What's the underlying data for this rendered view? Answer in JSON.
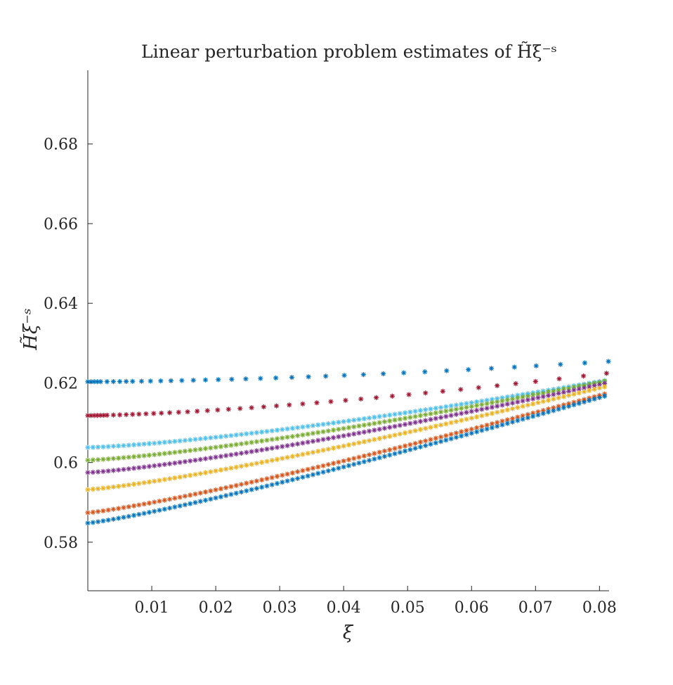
{
  "chart_data": {
    "type": "scatter",
    "title": "Linear perturbation problem estimates of H̃ξ⁻ˢ",
    "xlabel": "ξ",
    "ylabel": "H̃ξ⁻ˢ",
    "xlim": [
      0,
      0.0815
    ],
    "ylim": [
      0.5678,
      0.6985
    ],
    "xticks": [
      0.01,
      0.02,
      0.03,
      0.04,
      0.05,
      0.06,
      0.07,
      0.08
    ],
    "xtick_labels": [
      "0.01",
      "0.02",
      "0.03",
      "0.04",
      "0.05",
      "0.06",
      "0.07",
      "0.08"
    ],
    "yticks": [
      0.58,
      0.6,
      0.62,
      0.64,
      0.66,
      0.68
    ],
    "ytick_labels": [
      "0.58",
      "0.6",
      "0.62",
      "0.64",
      "0.66",
      "0.68"
    ],
    "grid": false,
    "legend": "none",
    "marker": "asterisk",
    "series": [
      {
        "color": "#0072BD",
        "y0": 0.6203,
        "a": 0.3195,
        "b": 1.65,
        "x": [
          0.0,
          0.0005,
          0.001,
          0.0015,
          0.002,
          0.003,
          0.004,
          0.005,
          0.006,
          0.007,
          0.0084,
          0.0098,
          0.0114,
          0.013,
          0.0147,
          0.0165,
          0.0184,
          0.0204,
          0.0225,
          0.0247,
          0.027,
          0.0294,
          0.0319,
          0.0345,
          0.0372,
          0.0401,
          0.0431,
          0.0462,
          0.0494,
          0.0527,
          0.0561,
          0.0595,
          0.0631,
          0.0667,
          0.0701,
          0.0739,
          0.0777,
          0.0814
        ]
      },
      {
        "color": "#A2142F",
        "y0": 0.6118,
        "a": 0.4155,
        "b": 1.46,
        "x": [
          0.0,
          0.0005,
          0.001,
          0.0015,
          0.002,
          0.0025,
          0.003,
          0.004,
          0.005,
          0.006,
          0.007,
          0.008,
          0.0091,
          0.0103,
          0.0115,
          0.0128,
          0.0142,
          0.0156,
          0.0171,
          0.0187,
          0.0203,
          0.022,
          0.0238,
          0.0256,
          0.0275,
          0.0295,
          0.0315,
          0.0336,
          0.0358,
          0.038,
          0.0403,
          0.0427,
          0.0451,
          0.0476,
          0.0502,
          0.0528,
          0.0555,
          0.0583,
          0.0611,
          0.064,
          0.0669,
          0.07,
          0.0737,
          0.0775,
          0.0811
        ]
      },
      {
        "color": "#4DBEEE",
        "y0": 0.6038,
        "a": 0.5011,
        "b": 1.35
      },
      {
        "color": "#77AC30",
        "y0": 0.6006,
        "a": 0.5224,
        "b": 1.3
      },
      {
        "color": "#7E2F8E",
        "y0": 0.5975,
        "a": 0.5317,
        "b": 1.26
      },
      {
        "color": "#EDB120",
        "y0": 0.5932,
        "a": 0.5559,
        "b": 1.22
      },
      {
        "color": "#D95319",
        "y0": 0.5874,
        "a": 0.5804,
        "b": 1.18
      },
      {
        "color": "#0072BD",
        "y0": 0.5848,
        "a": 0.5899,
        "b": 1.16
      }
    ]
  }
}
